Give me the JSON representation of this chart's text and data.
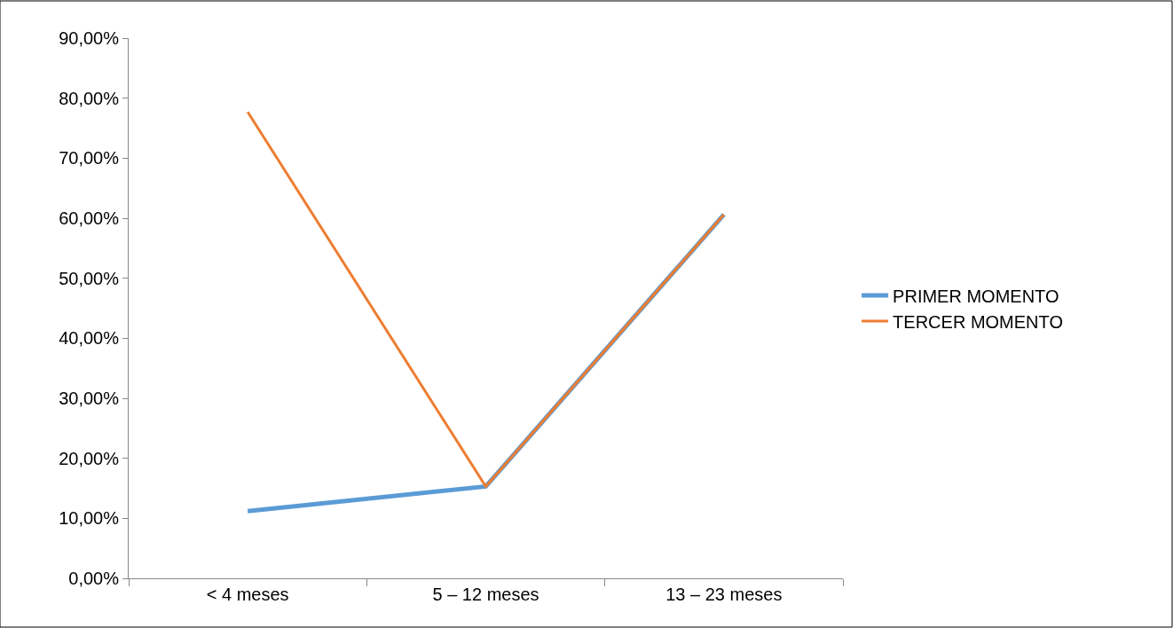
{
  "chart_data": {
    "type": "line",
    "categories": [
      "< 4 meses",
      "5 – 12 meses",
      "13 – 23 meses"
    ],
    "series": [
      {
        "name": "PRIMER MOMENTO",
        "color": "#5b9bd5",
        "values": [
          11.2,
          15.3,
          60.6
        ]
      },
      {
        "name": "TERCER MOMENTO",
        "color": "#ed7d31",
        "values": [
          77.7,
          15.3,
          60.6
        ]
      }
    ],
    "ylim": [
      0,
      90
    ],
    "yticks": [
      {
        "value": 0,
        "label": "0,00%"
      },
      {
        "value": 10,
        "label": "10,00%"
      },
      {
        "value": 20,
        "label": "20,00%"
      },
      {
        "value": 30,
        "label": "30,00%"
      },
      {
        "value": 40,
        "label": "40,00%"
      },
      {
        "value": 50,
        "label": "50,00%"
      },
      {
        "value": 60,
        "label": "60,00%"
      },
      {
        "value": 70,
        "label": "70,00%"
      },
      {
        "value": 80,
        "label": "80,00%"
      },
      {
        "value": 90,
        "label": "90,00%"
      }
    ],
    "legend": "right",
    "marker": "none",
    "line_style": "solid"
  }
}
